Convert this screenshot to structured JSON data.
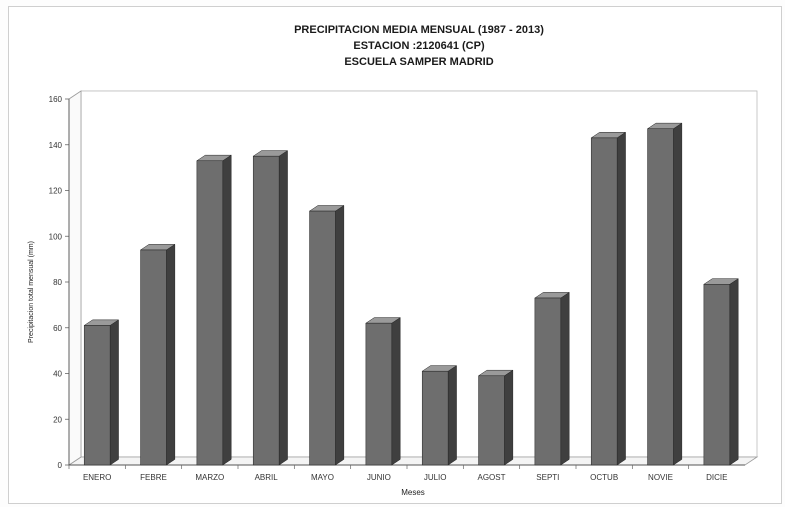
{
  "chart_data": {
    "type": "bar",
    "title": [
      "PRECIPITACION MEDIA MENSUAL (1987 - 2013)",
      "ESTACION :2120641 (CP)",
      "ESCUELA SAMPER MADRID"
    ],
    "xlabel": "Meses",
    "ylabel": "Precipitacion total mensual (mm)",
    "categories": [
      "ENERO",
      "FEBRE",
      "MARZO",
      "ABRIL",
      "MAYO",
      "JUNIO",
      "JULIO",
      "AGOST",
      "SEPTI",
      "OCTUB",
      "NOVIE",
      "DICIE"
    ],
    "values": [
      61,
      94,
      133,
      135,
      111,
      62,
      41,
      39,
      73,
      143,
      147,
      79
    ],
    "ylim": [
      0,
      160
    ],
    "yticks": [
      0,
      20,
      40,
      60,
      80,
      100,
      120,
      140,
      160
    ],
    "grid": true,
    "style": "3d-column",
    "colors": {
      "bar_front": "#6e6e6e",
      "bar_side": "#3f3f3f",
      "bar_top": "#9a9a9a"
    }
  }
}
